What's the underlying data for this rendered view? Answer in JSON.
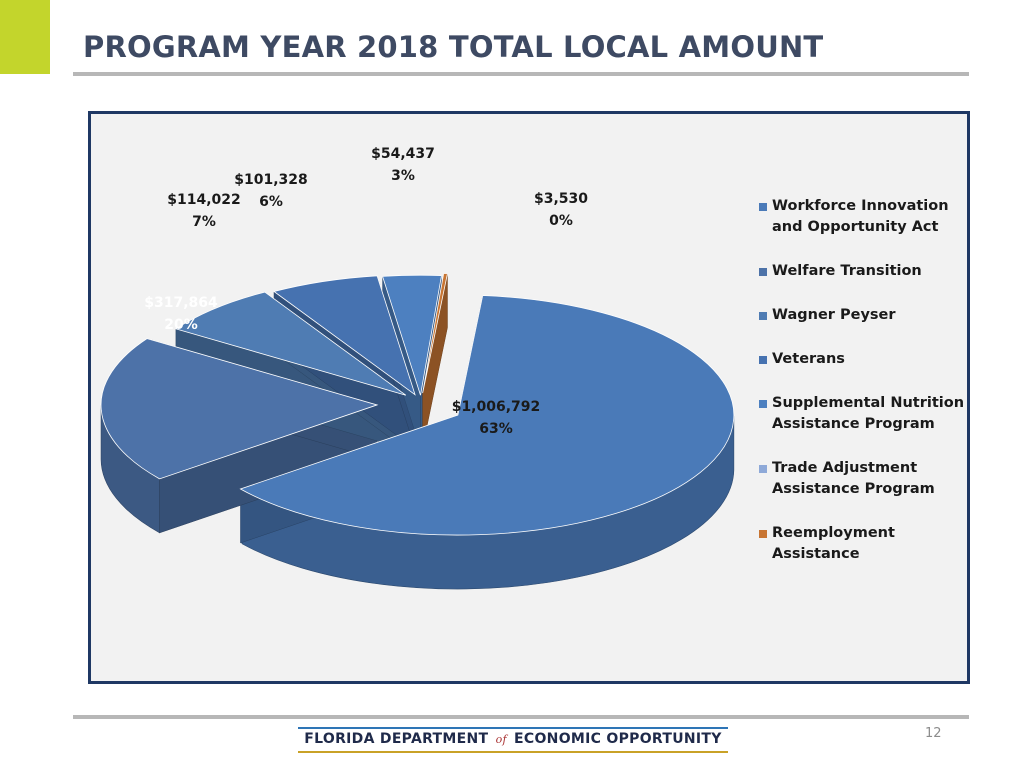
{
  "slide": {
    "title": "PROGRAM YEAR 2018 TOTAL LOCAL AMOUNT",
    "page_number": "12",
    "footer": {
      "left": "FLORIDA DEPARTMENT",
      "of": "of",
      "right": "ECONOMIC OPPORTUNITY"
    },
    "colors": {
      "accent": "#c3d52c",
      "title": "#3e4a63",
      "frame": "#1f3864"
    }
  },
  "chart_data": {
    "type": "pie",
    "three_d": true,
    "exploded": true,
    "title": "",
    "legend_position": "right",
    "slices": [
      {
        "name": "Workforce Innovation and Opportunity Act",
        "legend_lines": [
          "Workforce Innovation",
          "and Opportunity Act"
        ],
        "value_label": "$1,006,792",
        "percent_label": "63%",
        "value": 1006792,
        "percent": 63,
        "color": "#4a7ab8"
      },
      {
        "name": "Welfare Transition",
        "legend_lines": [
          "Welfare Transition"
        ],
        "value_label": "$317,864",
        "percent_label": "20%",
        "value": 317864,
        "percent": 20,
        "color": "#4d72a8"
      },
      {
        "name": "Wagner Peyser",
        "legend_lines": [
          "Wagner Peyser"
        ],
        "value_label": "$114,022",
        "percent_label": "7%",
        "value": 114022,
        "percent": 7,
        "color": "#4f7cb3"
      },
      {
        "name": "Veterans",
        "legend_lines": [
          "Veterans"
        ],
        "value_label": "$101,328",
        "percent_label": "6%",
        "value": 101328,
        "percent": 6,
        "color": "#4672b0"
      },
      {
        "name": "Supplemental Nutrition Assistance Program",
        "legend_lines": [
          "Supplemental Nutrition",
          "Assistance Program"
        ],
        "value_label": "$54,437",
        "percent_label": "3%",
        "value": 54437,
        "percent": 3,
        "color": "#4d80c0"
      },
      {
        "name": "Trade Adjustment Assistance Program",
        "legend_lines": [
          "Trade Adjustment",
          "Assistance Program"
        ],
        "value_label": "",
        "percent_label": "",
        "value": 0,
        "percent": 0,
        "color": "#8ea9d8"
      },
      {
        "name": "Reemployment Assistance",
        "legend_lines": [
          "Reemployment",
          "Assistance"
        ],
        "value_label": "$3,530",
        "percent_label": "0%",
        "value": 3530,
        "percent": 0,
        "color": "#c87533"
      }
    ]
  }
}
